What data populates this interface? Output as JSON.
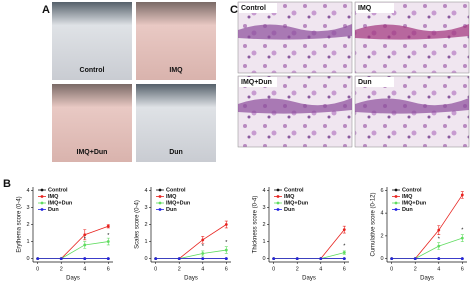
{
  "panel_labels": {
    "a": "A",
    "b": "B",
    "c": "C"
  },
  "photos_a": [
    "Control",
    "IMQ",
    "IMQ+Dun",
    "Dun"
  ],
  "photos_c": [
    "Control",
    "IMQ",
    "IMQ+Dun",
    "Dun"
  ],
  "chart_data": [
    {
      "type": "line",
      "ylabel": "Erythema score (0-4)",
      "xlabel": "Days",
      "x": [
        0,
        2,
        4,
        6
      ],
      "xlim": [
        -0.4,
        6.4
      ],
      "xticks": [
        0,
        2,
        4,
        6
      ],
      "ylim": [
        -0.2,
        4.2
      ],
      "yticks": [
        0,
        1,
        2,
        3,
        4
      ],
      "series": [
        {
          "name": "Control",
          "color": "#111111",
          "values": [
            0,
            0,
            0,
            0
          ]
        },
        {
          "name": "IMQ",
          "color": "#e8231f",
          "values": [
            0,
            0,
            1.4,
            1.9
          ],
          "errors": [
            0,
            0,
            0.3,
            0.1
          ]
        },
        {
          "name": "IMQ+Dun",
          "color": "#5fdc5f",
          "values": [
            0,
            0,
            0.8,
            1.0
          ],
          "errors": [
            0,
            0,
            0.2,
            0.2
          ]
        },
        {
          "name": "Dun",
          "color": "#2323e0",
          "values": [
            0,
            0,
            0,
            0
          ]
        }
      ],
      "annotations": [
        {
          "text": "*",
          "x": 4,
          "y": 1.15
        },
        {
          "text": "*",
          "x": 6,
          "y": 1.35
        }
      ]
    },
    {
      "type": "line",
      "ylabel": "Scales score (0-4)",
      "xlabel": "Days",
      "x": [
        0,
        2,
        4,
        6
      ],
      "xlim": [
        -0.4,
        6.4
      ],
      "xticks": [
        0,
        2,
        4,
        6
      ],
      "ylim": [
        -0.2,
        4.2
      ],
      "yticks": [
        0,
        1,
        2,
        3,
        4
      ],
      "series": [
        {
          "name": "Control",
          "color": "#111111",
          "values": [
            0,
            0,
            0,
            0
          ]
        },
        {
          "name": "IMQ",
          "color": "#e8231f",
          "values": [
            0,
            0,
            1.1,
            2.0
          ],
          "errors": [
            0,
            0,
            0.2,
            0.2
          ]
        },
        {
          "name": "IMQ+Dun",
          "color": "#5fdc5f",
          "values": [
            0,
            0,
            0.3,
            0.5
          ],
          "errors": [
            0,
            0,
            0.15,
            0.2
          ]
        },
        {
          "name": "Dun",
          "color": "#2323e0",
          "values": [
            0,
            0,
            0,
            0
          ]
        }
      ],
      "annotations": [
        {
          "text": "*",
          "x": 4,
          "y": 0.7
        },
        {
          "text": "*",
          "x": 6,
          "y": 0.95
        }
      ]
    },
    {
      "type": "line",
      "ylabel": "Thickness score (0-4)",
      "xlabel": "Days",
      "x": [
        0,
        2,
        4,
        6
      ],
      "xlim": [
        -0.4,
        6.4
      ],
      "xticks": [
        0,
        2,
        4,
        6
      ],
      "ylim": [
        -0.2,
        4.2
      ],
      "yticks": [
        0,
        1,
        2,
        3,
        4
      ],
      "series": [
        {
          "name": "Control",
          "color": "#111111",
          "values": [
            0,
            0,
            0,
            0
          ]
        },
        {
          "name": "IMQ",
          "color": "#e8231f",
          "values": [
            0,
            0,
            0,
            1.7
          ],
          "errors": [
            0,
            0,
            0,
            0.2
          ]
        },
        {
          "name": "IMQ+Dun",
          "color": "#5fdc5f",
          "values": [
            0,
            0,
            0,
            0.35
          ],
          "errors": [
            0,
            0,
            0,
            0.1
          ]
        },
        {
          "name": "Dun",
          "color": "#2323e0",
          "values": [
            0,
            0,
            0,
            0
          ]
        }
      ],
      "annotations": [
        {
          "text": "*",
          "x": 6,
          "y": 0.75
        }
      ]
    },
    {
      "type": "line",
      "ylabel": "Cumulative score (0-12)",
      "xlabel": "Days",
      "x": [
        0,
        2,
        4,
        6
      ],
      "xlim": [
        -0.4,
        6.4
      ],
      "xticks": [
        0,
        2,
        4,
        6
      ],
      "ylim": [
        -0.3,
        6.3
      ],
      "yticks": [
        0,
        2,
        4,
        6
      ],
      "series": [
        {
          "name": "Control",
          "color": "#111111",
          "values": [
            0,
            0,
            0,
            0
          ]
        },
        {
          "name": "IMQ",
          "color": "#e8231f",
          "values": [
            0,
            0,
            2.5,
            5.6
          ],
          "errors": [
            0,
            0,
            0.4,
            0.3
          ]
        },
        {
          "name": "IMQ+Dun",
          "color": "#5fdc5f",
          "values": [
            0,
            0,
            1.1,
            1.8
          ],
          "errors": [
            0,
            0,
            0.3,
            0.3
          ]
        },
        {
          "name": "Dun",
          "color": "#2323e0",
          "values": [
            0,
            0,
            0,
            0
          ]
        }
      ],
      "annotations": [
        {
          "text": "*",
          "x": 4,
          "y": 1.7
        },
        {
          "text": "*",
          "x": 6,
          "y": 2.5
        }
      ]
    }
  ]
}
